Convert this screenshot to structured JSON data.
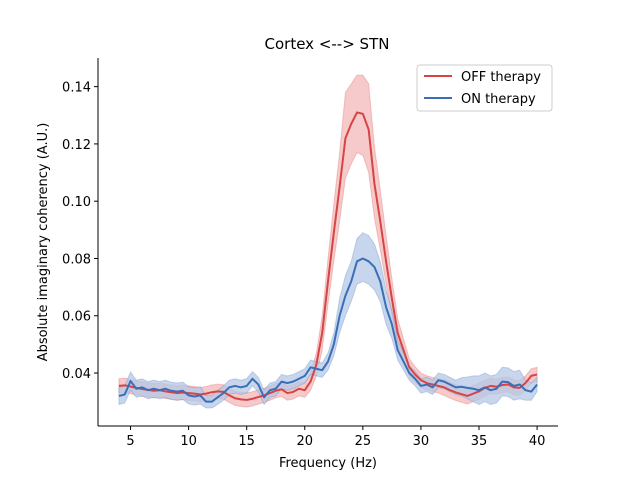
{
  "chart_data": {
    "type": "line",
    "title": "Cortex <--> STN",
    "xlabel": "Frequency (Hz)",
    "ylabel": "Absolute imaginary coherency (A.U.)",
    "xlim": [
      2.2,
      41.8
    ],
    "ylim": [
      0.0215,
      0.15
    ],
    "xticks": [
      5,
      10,
      15,
      20,
      25,
      30,
      35,
      40
    ],
    "yticks": [
      0.04,
      0.06,
      0.08,
      0.1,
      0.12,
      0.14
    ],
    "xtick_labels": [
      "5",
      "10",
      "15",
      "20",
      "25",
      "30",
      "35",
      "40"
    ],
    "ytick_labels": [
      "0.04",
      "0.06",
      "0.08",
      "0.10",
      "0.12",
      "0.14"
    ],
    "grid": false,
    "legend_position": "top-right",
    "x": [
      4,
      4.5,
      5,
      5.5,
      6,
      6.5,
      7,
      7.5,
      8,
      8.5,
      9,
      9.5,
      10,
      10.5,
      11,
      11.5,
      12,
      12.5,
      13,
      13.5,
      14,
      14.5,
      15,
      15.5,
      16,
      16.5,
      17,
      17.5,
      18,
      18.5,
      19,
      19.5,
      20,
      20.5,
      21,
      21.5,
      22,
      22.5,
      23,
      23.5,
      24,
      24.5,
      25,
      25.5,
      26,
      26.5,
      27,
      27.5,
      28,
      28.5,
      29,
      29.5,
      30,
      30.5,
      31,
      31.5,
      32,
      32.5,
      33,
      33.5,
      34,
      34.5,
      35,
      35.5,
      36,
      36.5,
      37,
      37.5,
      38,
      38.5,
      39,
      39.5,
      40
    ],
    "series": [
      {
        "name": "OFF therapy",
        "color": "#d64545",
        "band_color": "#f3b8b8",
        "values": [
          0.0355,
          0.0357,
          0.0353,
          0.0348,
          0.0344,
          0.0341,
          0.0338,
          0.034,
          0.0336,
          0.0333,
          0.033,
          0.0332,
          0.033,
          0.0328,
          0.0325,
          0.0328,
          0.0333,
          0.0336,
          0.0334,
          0.0322,
          0.0312,
          0.0308,
          0.0306,
          0.031,
          0.0316,
          0.0322,
          0.033,
          0.0338,
          0.0343,
          0.033,
          0.0334,
          0.0345,
          0.034,
          0.037,
          0.043,
          0.054,
          0.072,
          0.089,
          0.105,
          0.122,
          0.127,
          0.131,
          0.1305,
          0.125,
          0.106,
          0.093,
          0.079,
          0.066,
          0.054,
          0.048,
          0.042,
          0.0395,
          0.0375,
          0.0365,
          0.036,
          0.0355,
          0.035,
          0.034,
          0.0332,
          0.0326,
          0.032,
          0.0328,
          0.0336,
          0.0348,
          0.0355,
          0.0352,
          0.0358,
          0.036,
          0.035,
          0.0348,
          0.0365,
          0.039,
          0.0395
        ],
        "lower": [
          0.033,
          0.0332,
          0.0328,
          0.0323,
          0.0319,
          0.0316,
          0.0313,
          0.0315,
          0.0311,
          0.0308,
          0.0305,
          0.0307,
          0.0305,
          0.0303,
          0.03,
          0.0303,
          0.0308,
          0.0311,
          0.0309,
          0.0297,
          0.0287,
          0.0283,
          0.0281,
          0.0285,
          0.0291,
          0.0297,
          0.0305,
          0.0313,
          0.0318,
          0.0305,
          0.0309,
          0.032,
          0.0315,
          0.034,
          0.039,
          0.048,
          0.064,
          0.079,
          0.093,
          0.108,
          0.113,
          0.117,
          0.116,
          0.11,
          0.094,
          0.083,
          0.071,
          0.06,
          0.05,
          0.0445,
          0.039,
          0.0368,
          0.035,
          0.034,
          0.0335,
          0.033,
          0.0322,
          0.0312,
          0.0304,
          0.0298,
          0.0292,
          0.03,
          0.0308,
          0.032,
          0.0328,
          0.0326,
          0.0332,
          0.0334,
          0.0324,
          0.0322,
          0.034,
          0.0365,
          0.037
        ],
        "upper": [
          0.038,
          0.0382,
          0.0378,
          0.0373,
          0.0369,
          0.0366,
          0.0363,
          0.0365,
          0.0361,
          0.0358,
          0.0355,
          0.0357,
          0.0355,
          0.0353,
          0.035,
          0.0353,
          0.0358,
          0.0361,
          0.0359,
          0.0347,
          0.0337,
          0.0333,
          0.0331,
          0.0335,
          0.0341,
          0.0347,
          0.0355,
          0.0363,
          0.0368,
          0.0355,
          0.0359,
          0.037,
          0.0365,
          0.04,
          0.047,
          0.06,
          0.08,
          0.099,
          0.117,
          0.138,
          0.141,
          0.144,
          0.144,
          0.141,
          0.119,
          0.104,
          0.088,
          0.073,
          0.059,
          0.052,
          0.045,
          0.0422,
          0.04,
          0.039,
          0.0385,
          0.038,
          0.0378,
          0.0368,
          0.036,
          0.0354,
          0.0348,
          0.0356,
          0.0364,
          0.0376,
          0.0382,
          0.0378,
          0.0384,
          0.0386,
          0.0376,
          0.0374,
          0.039,
          0.0415,
          0.042
        ]
      },
      {
        "name": "ON therapy",
        "color": "#3a6fb8",
        "band_color": "#b4c8e6",
        "values": [
          0.032,
          0.0325,
          0.0372,
          0.0345,
          0.035,
          0.034,
          0.0345,
          0.034,
          0.0345,
          0.0338,
          0.0335,
          0.0338,
          0.0322,
          0.0318,
          0.0322,
          0.03,
          0.03,
          0.0315,
          0.033,
          0.035,
          0.0355,
          0.035,
          0.0355,
          0.038,
          0.036,
          0.0315,
          0.034,
          0.0345,
          0.037,
          0.0365,
          0.037,
          0.038,
          0.039,
          0.042,
          0.0415,
          0.041,
          0.044,
          0.05,
          0.06,
          0.067,
          0.072,
          0.079,
          0.08,
          0.079,
          0.077,
          0.072,
          0.063,
          0.057,
          0.048,
          0.044,
          0.04,
          0.038,
          0.0355,
          0.036,
          0.035,
          0.0375,
          0.037,
          0.036,
          0.035,
          0.0352,
          0.0348,
          0.0345,
          0.034,
          0.035,
          0.034,
          0.0345,
          0.037,
          0.0368,
          0.0355,
          0.036,
          0.034,
          0.0335,
          0.036
        ],
        "lower": [
          0.029,
          0.0295,
          0.034,
          0.0315,
          0.032,
          0.031,
          0.0315,
          0.031,
          0.0315,
          0.0308,
          0.0305,
          0.0308,
          0.0292,
          0.0288,
          0.0292,
          0.0278,
          0.0278,
          0.029,
          0.0305,
          0.0325,
          0.033,
          0.0325,
          0.033,
          0.0355,
          0.0335,
          0.029,
          0.0315,
          0.032,
          0.0345,
          0.034,
          0.0345,
          0.0355,
          0.0365,
          0.0395,
          0.039,
          0.0385,
          0.041,
          0.046,
          0.054,
          0.06,
          0.065,
          0.071,
          0.072,
          0.071,
          0.069,
          0.065,
          0.057,
          0.052,
          0.0445,
          0.041,
          0.0375,
          0.0355,
          0.033,
          0.0335,
          0.0325,
          0.035,
          0.0345,
          0.0335,
          0.0325,
          0.032,
          0.031,
          0.03,
          0.029,
          0.03,
          0.029,
          0.0295,
          0.032,
          0.0318,
          0.0305,
          0.031,
          0.0305,
          0.0305,
          0.0335
        ],
        "upper": [
          0.035,
          0.0355,
          0.0404,
          0.0375,
          0.038,
          0.037,
          0.0375,
          0.037,
          0.0375,
          0.0368,
          0.0365,
          0.0368,
          0.0352,
          0.0348,
          0.0352,
          0.0322,
          0.0322,
          0.034,
          0.0355,
          0.0375,
          0.038,
          0.0375,
          0.038,
          0.0405,
          0.0385,
          0.034,
          0.0365,
          0.037,
          0.0395,
          0.039,
          0.0395,
          0.0405,
          0.0415,
          0.0445,
          0.044,
          0.0435,
          0.047,
          0.054,
          0.066,
          0.074,
          0.079,
          0.087,
          0.089,
          0.088,
          0.085,
          0.079,
          0.069,
          0.062,
          0.0515,
          0.047,
          0.0425,
          0.0405,
          0.038,
          0.0385,
          0.0375,
          0.04,
          0.0395,
          0.0385,
          0.0375,
          0.0384,
          0.0386,
          0.039,
          0.039,
          0.04,
          0.039,
          0.0395,
          0.042,
          0.0418,
          0.0405,
          0.041,
          0.0375,
          0.0365,
          0.0385
        ]
      }
    ]
  }
}
